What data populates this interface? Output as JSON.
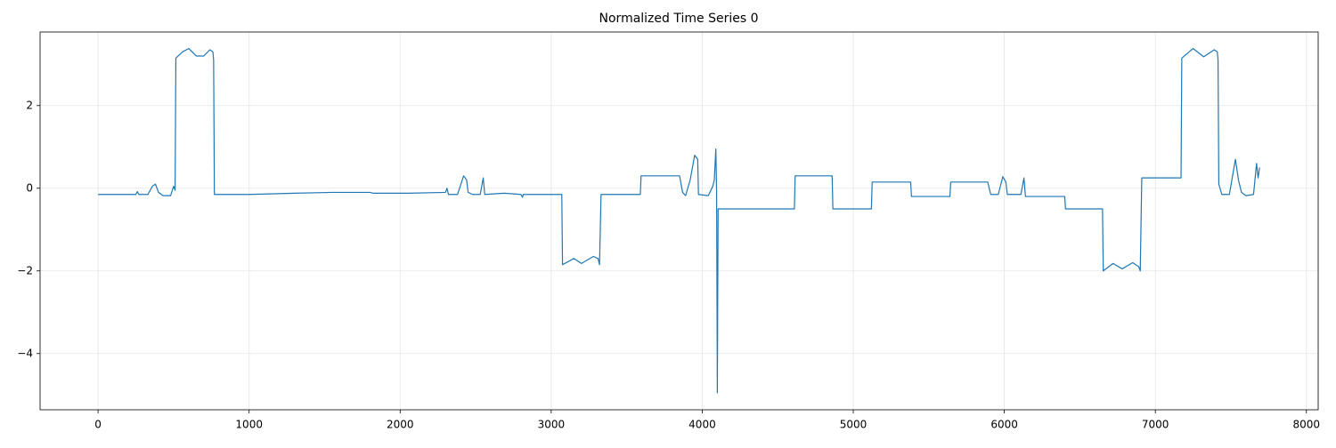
{
  "chart_data": {
    "type": "line",
    "title": "Normalized Time Series 0",
    "x": [
      0,
      250,
      260,
      270,
      330,
      360,
      380,
      400,
      430,
      480,
      500,
      510,
      515,
      560,
      600,
      650,
      700,
      740,
      760,
      765,
      770,
      1000,
      1300,
      1550,
      1800,
      1820,
      2050,
      2300,
      2310,
      2320,
      2380,
      2420,
      2440,
      2450,
      2480,
      2530,
      2550,
      2560,
      2690,
      2800,
      2810,
      2815,
      3070,
      3075,
      3150,
      3200,
      3280,
      3310,
      3320,
      3330,
      3590,
      3595,
      3850,
      3870,
      3890,
      3920,
      3950,
      3970,
      3975,
      4040,
      4070,
      4080,
      4090,
      4095,
      4100,
      4105,
      4360,
      4610,
      4615,
      4860,
      4865,
      5120,
      5125,
      5380,
      5385,
      5640,
      5645,
      5890,
      5910,
      5960,
      5990,
      6010,
      6020,
      6110,
      6130,
      6140,
      6400,
      6405,
      6650,
      6655,
      6720,
      6780,
      6850,
      6890,
      6900,
      6910,
      7170,
      7175,
      7250,
      7320,
      7390,
      7410,
      7415,
      7420,
      7440,
      7490,
      7530,
      7550,
      7570,
      7600,
      7650,
      7670,
      7680,
      7690
    ],
    "series": [
      {
        "color": "#1f77b4",
        "values": [
          -0.15,
          -0.15,
          -0.08,
          -0.15,
          -0.15,
          0.05,
          0.1,
          -0.1,
          -0.18,
          -0.18,
          0.05,
          -0.05,
          3.15,
          3.3,
          3.38,
          3.2,
          3.2,
          3.35,
          3.3,
          3.1,
          -0.15,
          -0.15,
          -0.12,
          -0.1,
          -0.1,
          -0.12,
          -0.12,
          -0.1,
          0.0,
          -0.15,
          -0.15,
          0.3,
          0.2,
          -0.1,
          -0.15,
          -0.15,
          0.25,
          -0.15,
          -0.12,
          -0.15,
          -0.22,
          -0.15,
          -0.15,
          -1.85,
          -1.7,
          -1.82,
          -1.65,
          -1.7,
          -1.85,
          -0.15,
          -0.15,
          0.3,
          0.3,
          -0.1,
          -0.18,
          0.2,
          0.8,
          0.7,
          -0.15,
          -0.18,
          0.05,
          0.2,
          0.95,
          -0.05,
          -4.95,
          -0.5,
          -0.5,
          -0.5,
          0.3,
          0.3,
          -0.5,
          -0.5,
          0.15,
          0.15,
          -0.2,
          -0.2,
          0.15,
          0.15,
          -0.15,
          -0.15,
          0.28,
          0.15,
          -0.15,
          -0.15,
          0.25,
          -0.2,
          -0.2,
          -0.5,
          -0.5,
          -2.0,
          -1.82,
          -1.95,
          -1.8,
          -1.9,
          -2.0,
          0.25,
          0.25,
          3.15,
          3.38,
          3.18,
          3.35,
          3.3,
          3.1,
          0.1,
          -0.15,
          -0.15,
          0.7,
          0.2,
          -0.1,
          -0.18,
          -0.15,
          0.6,
          0.25,
          0.5
        ]
      }
    ],
    "xlim": [
      -384,
      8078
    ],
    "ylim": [
      -5.36,
      3.78
    ],
    "xticks": [
      0,
      1000,
      2000,
      3000,
      4000,
      5000,
      6000,
      7000,
      8000
    ],
    "yticks": [
      {
        "value": -4,
        "label": "−4"
      },
      {
        "value": -2,
        "label": "−2"
      },
      0,
      2
    ],
    "grid": true
  }
}
